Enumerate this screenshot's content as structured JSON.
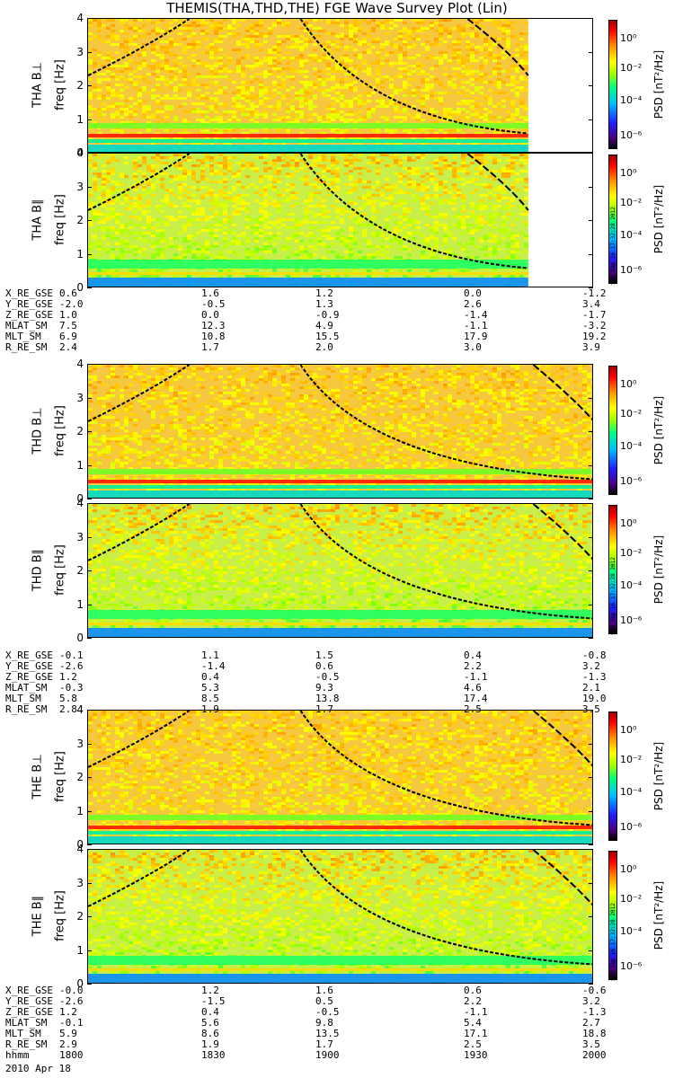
{
  "title": "THEMIS(THA,THD,THE) FGE Wave Survey Plot (Lin)",
  "colorbar": {
    "label": "PSD [nT²/Hz]",
    "ticks": [
      "10⁰",
      "10⁻²",
      "10⁻⁴",
      "10⁻⁶"
    ],
    "stamp": "Sun Sep 16 17:32:28 2012"
  },
  "yticks": [
    "4",
    "3",
    "2",
    "1",
    "0"
  ],
  "panels": [
    {
      "name": "THA B⊥",
      "ylabel": "freq [Hz]"
    },
    {
      "name": "THA B∥",
      "ylabel": "freq [Hz]"
    },
    {
      "name": "THD B⊥",
      "ylabel": "freq [Hz]"
    },
    {
      "name": "THD B∥",
      "ylabel": "freq [Hz]"
    },
    {
      "name": "THE B⊥",
      "ylabel": "freq [Hz]"
    },
    {
      "name": "THE B∥",
      "ylabel": "freq [Hz]"
    }
  ],
  "ephemeris": [
    {
      "rows": [
        {
          "label": "X_RE_GSE",
          "values": [
            "0.6",
            "1.6",
            "1.2",
            "0.0",
            "-1.2"
          ]
        },
        {
          "label": "Y_RE_GSE",
          "values": [
            "-2.0",
            "-0.5",
            "1.3",
            "2.6",
            "3.4"
          ]
        },
        {
          "label": "Z_RE_GSE",
          "values": [
            "1.0",
            "0.0",
            "-0.9",
            "-1.4",
            "-1.7"
          ]
        },
        {
          "label": "MLAT_SM",
          "values": [
            "7.5",
            "12.3",
            "4.9",
            "-1.1",
            "-3.2"
          ]
        },
        {
          "label": "MLT_SM",
          "values": [
            "6.9",
            "10.8",
            "15.5",
            "17.9",
            "19.2"
          ]
        },
        {
          "label": "R_RE_SM",
          "values": [
            "2.4",
            "1.7",
            "2.0",
            "3.0",
            "3.9"
          ]
        }
      ]
    },
    {
      "rows": [
        {
          "label": "X_RE_GSE",
          "values": [
            "-0.1",
            "1.1",
            "1.5",
            "0.4",
            "-0.8"
          ]
        },
        {
          "label": "Y_RE_GSE",
          "values": [
            "-2.6",
            "-1.4",
            "0.6",
            "2.2",
            "3.2"
          ]
        },
        {
          "label": "Z_RE_GSE",
          "values": [
            "1.2",
            "0.4",
            "-0.5",
            "-1.1",
            "-1.3"
          ]
        },
        {
          "label": "MLAT_SM",
          "values": [
            "-0.3",
            "5.3",
            "9.3",
            "4.6",
            "2.1"
          ]
        },
        {
          "label": "MLT_SM",
          "values": [
            "5.8",
            "8.5",
            "13.8",
            "17.4",
            "19.0"
          ]
        },
        {
          "label": "R_RE_SM",
          "values": [
            "2.8",
            "1.9",
            "1.7",
            "2.5",
            "3.5"
          ]
        }
      ]
    },
    {
      "rows": [
        {
          "label": "X_RE_GSE",
          "values": [
            "-0.0",
            "1.2",
            "1.6",
            "0.6",
            "-0.6"
          ]
        },
        {
          "label": "Y_RE_GSE",
          "values": [
            "-2.6",
            "-1.5",
            "0.5",
            "2.2",
            "3.2"
          ]
        },
        {
          "label": "Z_RE_GSE",
          "values": [
            "1.2",
            "0.4",
            "-0.5",
            "-1.1",
            "-1.3"
          ]
        },
        {
          "label": "MLAT_SM",
          "values": [
            "-0.1",
            "5.6",
            "9.8",
            "5.4",
            "2.7"
          ]
        },
        {
          "label": "MLT_SM",
          "values": [
            "5.9",
            "8.6",
            "13.5",
            "17.1",
            "18.8"
          ]
        },
        {
          "label": "R_RE_SM",
          "values": [
            "2.9",
            "1.9",
            "1.7",
            "2.5",
            "3.5"
          ]
        },
        {
          "label": "hhmm",
          "values": [
            "1800",
            "1830",
            "1900",
            "1930",
            "2000"
          ]
        }
      ]
    }
  ],
  "date_label": "2010 Apr 18",
  "chart_data": {
    "type": "heatmap",
    "title": "THEMIS(THA,THD,THE) FGE Wave Survey Plot (Lin)",
    "xlabel": "hhmm",
    "x_ticks": [
      "1800",
      "1830",
      "1900",
      "1930",
      "2000"
    ],
    "ylabel": "freq [Hz]",
    "ylim": [
      0,
      4
    ],
    "yscale": "linear",
    "colorscale": "log",
    "clim": [
      1e-07,
      10.0
    ],
    "colorbar_label": "PSD [nT²/Hz]",
    "panels": [
      "THA B⊥",
      "THA B∥",
      "THD B⊥",
      "THD B∥",
      "THE B⊥",
      "THE B∥"
    ],
    "data_end_fraction": [
      0.87,
      0.87,
      1.0,
      1.0,
      1.0,
      1.0
    ]
  }
}
